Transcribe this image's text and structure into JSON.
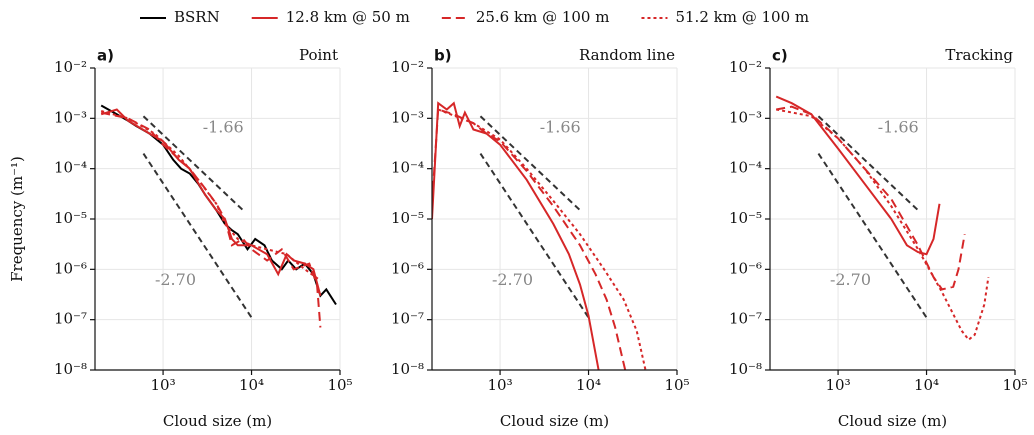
{
  "chart_data": [
    {
      "type": "line",
      "panel": "a)",
      "title": "Point",
      "xlabel": "Cloud size (m)",
      "ylabel": "Frequency (m⁻¹)",
      "xscale": "log",
      "yscale": "log",
      "grid": true,
      "xlim": [
        170,
        100000
      ],
      "ylim": [
        1e-08,
        0.01
      ],
      "xticks": [
        {
          "value": 1000,
          "label": "10³"
        },
        {
          "value": 10000,
          "label": "10⁴"
        },
        {
          "value": 100000,
          "label": "10⁵"
        }
      ],
      "yticks": [
        {
          "value": 1e-08,
          "label": "10⁻⁸"
        },
        {
          "value": 1e-07,
          "label": "10⁻⁷"
        },
        {
          "value": 1e-06,
          "label": "10⁻⁶"
        },
        {
          "value": 1e-05,
          "label": "10⁻⁵"
        },
        {
          "value": 0.0001,
          "label": "10⁻⁴"
        },
        {
          "value": 0.001,
          "label": "10⁻³"
        },
        {
          "value": 0.01,
          "label": "10⁻²"
        }
      ],
      "ref_lines": [
        {
          "label": "-1.66",
          "x": [
            600,
            8000
          ],
          "y": [
            0.0011,
            1.5e-05
          ]
        },
        {
          "label": "-2.70",
          "x": [
            600,
            10000
          ],
          "y": [
            0.0002,
            1.1e-07
          ]
        }
      ],
      "series": [
        {
          "name": "BSRN",
          "color": "#000000",
          "dash": "solid",
          "x": [
            200,
            300,
            400,
            500,
            700,
            1000,
            1300,
            1600,
            2000,
            2500,
            3000,
            4000,
            5000,
            6000,
            7000,
            9000,
            11000,
            14000,
            17000,
            22000,
            26000,
            32000,
            40000,
            50000,
            60000,
            70000,
            90000
          ],
          "y": [
            0.0018,
            0.0012,
            0.0009,
            0.0007,
            0.0005,
            0.0003,
            0.00015,
            0.0001,
            8e-05,
            5e-05,
            3e-05,
            1.5e-05,
            8e-06,
            6e-06,
            5e-06,
            2.5e-06,
            4e-06,
            3e-06,
            1.5e-06,
            1e-06,
            1.5e-06,
            1e-06,
            1.3e-06,
            8e-07,
            3e-07,
            4e-07,
            2e-07
          ]
        },
        {
          "name": "12.8 km @ 50 m",
          "color": "#d62728",
          "dash": "solid",
          "x": [
            200,
            300,
            400,
            700,
            1000,
            1500,
            2000,
            3000,
            4000,
            5000,
            6000,
            7000,
            10000,
            15000,
            20000,
            25000,
            30000,
            40000,
            50000,
            60000
          ],
          "y": [
            0.0012,
            0.0015,
            0.0009,
            0.0005,
            0.00035,
            0.00015,
            0.0001,
            3e-05,
            1.5e-05,
            1e-05,
            4e-06,
            3e-06,
            3e-06,
            2e-06,
            8e-07,
            2e-06,
            1.5e-06,
            1.3e-06,
            1e-06,
            3e-07
          ]
        },
        {
          "name": "25.6 km @ 100 m",
          "color": "#d62728",
          "dash": "dashed",
          "x": [
            200,
            400,
            700,
            1000,
            2000,
            3000,
            4000,
            5000,
            6000,
            8000,
            10000,
            15000,
            22000,
            30000,
            45000,
            55000,
            60000
          ],
          "y": [
            0.0013,
            0.001,
            0.0006,
            0.0003,
            0.0001,
            4e-05,
            2e-05,
            1e-05,
            3e-06,
            4e-06,
            2.5e-06,
            1.5e-06,
            2.5e-06,
            1e-06,
            1.3e-06,
            5e-07,
            7e-08
          ]
        },
        {
          "name": "51.2 km @ 100 m",
          "color": "#d62728",
          "dash": "dotted",
          "x": [
            200,
            400,
            800,
            1500,
            2500,
            4000,
            5000,
            7000,
            10000,
            15000,
            25000,
            40000,
            60000
          ],
          "y": [
            0.0014,
            0.001,
            0.0005,
            0.00018,
            6e-05,
            2e-05,
            8e-06,
            4e-06,
            3e-06,
            2.5e-06,
            2e-06,
            1e-06,
            6e-07
          ]
        }
      ]
    },
    {
      "type": "line",
      "panel": "b)",
      "title": "Random line",
      "xlabel": "Cloud size (m)",
      "xscale": "log",
      "yscale": "log",
      "grid": true,
      "xlim": [
        170,
        100000
      ],
      "ylim": [
        1e-08,
        0.01
      ],
      "xticks": [
        {
          "value": 1000,
          "label": "10³"
        },
        {
          "value": 10000,
          "label": "10⁴"
        },
        {
          "value": 100000,
          "label": "10⁵"
        }
      ],
      "yticks": [
        {
          "value": 1e-08,
          "label": "10⁻⁸"
        },
        {
          "value": 1e-07,
          "label": "10⁻⁷"
        },
        {
          "value": 1e-06,
          "label": "10⁻⁶"
        },
        {
          "value": 1e-05,
          "label": "10⁻⁵"
        },
        {
          "value": 0.0001,
          "label": "10⁻⁴"
        },
        {
          "value": 0.001,
          "label": "10⁻³"
        },
        {
          "value": 0.01,
          "label": "10⁻²"
        }
      ],
      "ref_lines": [
        {
          "label": "-1.66",
          "x": [
            600,
            8000
          ],
          "y": [
            0.0011,
            1.5e-05
          ]
        },
        {
          "label": "-2.70",
          "x": [
            600,
            10000
          ],
          "y": [
            0.0002,
            1.1e-07
          ]
        }
      ],
      "series": [
        {
          "name": "12.8 km @ 50 m",
          "color": "#d62728",
          "dash": "solid",
          "x": [
            170,
            200,
            250,
            300,
            350,
            400,
            500,
            700,
            1000,
            2000,
            4000,
            6000,
            8000,
            10000,
            13000
          ],
          "y": [
            1e-05,
            0.002,
            0.0015,
            0.002,
            0.0007,
            0.0013,
            0.0006,
            0.0005,
            0.0003,
            6e-05,
            8e-06,
            2e-06,
            5e-07,
            1.2e-07,
            1e-08
          ]
        },
        {
          "name": "25.6 km @ 100 m",
          "color": "#d62728",
          "dash": "dashed",
          "x": [
            170,
            200,
            300,
            500,
            700,
            1000,
            2000,
            4000,
            8000,
            12000,
            16000,
            20000,
            26000
          ],
          "y": [
            2e-05,
            0.0015,
            0.0012,
            0.0008,
            0.0005,
            0.00035,
            9e-05,
            1.8e-05,
            3e-06,
            8e-07,
            2.5e-07,
            7e-08,
            1e-08
          ]
        },
        {
          "name": "51.2 km @ 100 m",
          "color": "#d62728",
          "dash": "dotted",
          "x": [
            200,
            500,
            1000,
            2000,
            4000,
            8000,
            15000,
            25000,
            35000,
            44000
          ],
          "y": [
            0.0015,
            0.0008,
            0.00038,
            0.0001,
            2.3e-05,
            5e-06,
            1e-06,
            2.5e-07,
            6e-08,
            1e-08
          ]
        }
      ]
    },
    {
      "type": "line",
      "panel": "c)",
      "title": "Tracking",
      "xlabel": "Cloud size (m)",
      "xscale": "log",
      "yscale": "log",
      "grid": true,
      "xlim": [
        170,
        100000
      ],
      "ylim": [
        1e-08,
        0.01
      ],
      "xticks": [
        {
          "value": 1000,
          "label": "10³"
        },
        {
          "value": 10000,
          "label": "10⁴"
        },
        {
          "value": 100000,
          "label": "10⁵"
        }
      ],
      "yticks": [
        {
          "value": 1e-08,
          "label": "10⁻⁸"
        },
        {
          "value": 1e-07,
          "label": "10⁻⁷"
        },
        {
          "value": 1e-06,
          "label": "10⁻⁶"
        },
        {
          "value": 1e-05,
          "label": "10⁻⁵"
        },
        {
          "value": 0.0001,
          "label": "10⁻⁴"
        },
        {
          "value": 0.001,
          "label": "10⁻³"
        },
        {
          "value": 0.01,
          "label": "10⁻²"
        }
      ],
      "ref_lines": [
        {
          "label": "-1.66",
          "x": [
            600,
            8000
          ],
          "y": [
            0.0011,
            1.5e-05
          ]
        },
        {
          "label": "-2.70",
          "x": [
            600,
            10000
          ],
          "y": [
            0.0002,
            1.1e-07
          ]
        }
      ],
      "series": [
        {
          "name": "12.8 km @ 50 m",
          "color": "#d62728",
          "dash": "solid",
          "x": [
            200,
            300,
            500,
            1000,
            2000,
            4000,
            6000,
            8000,
            10000,
            12000,
            14000
          ],
          "y": [
            0.0027,
            0.002,
            0.0012,
            0.00025,
            5e-05,
            1e-05,
            3e-06,
            2.2e-06,
            2e-06,
            4e-06,
            2e-05
          ]
        },
        {
          "name": "25.6 km @ 100 m",
          "color": "#d62728",
          "dash": "dashed",
          "x": [
            200,
            300,
            500,
            1000,
            2000,
            4000,
            8000,
            12000,
            15000,
            20000,
            23000,
            27000
          ],
          "y": [
            0.0015,
            0.0017,
            0.0012,
            0.0004,
            0.0001,
            2.5e-05,
            3e-06,
            7e-07,
            4e-07,
            4.5e-07,
            1e-06,
            5e-06
          ]
        },
        {
          "name": "51.2 km @ 100 m",
          "color": "#d62728",
          "dash": "dotted",
          "x": [
            200,
            500,
            1000,
            2000,
            4000,
            8000,
            15000,
            25000,
            30000,
            35000,
            45000,
            50000
          ],
          "y": [
            0.0015,
            0.0011,
            0.0004,
            0.0001,
            1.8e-05,
            2.5e-06,
            3.5e-07,
            6e-08,
            4e-08,
            5e-08,
            2e-07,
            7e-07
          ]
        }
      ]
    }
  ]
}
